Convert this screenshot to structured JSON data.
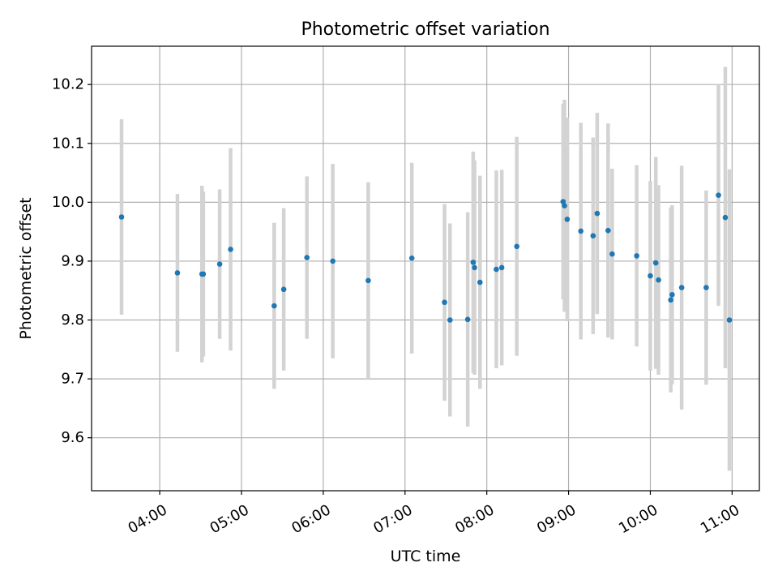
{
  "chart_data": {
    "type": "scatter",
    "title": "Photometric offset variation",
    "xlabel": "UTC time",
    "ylabel": "Photometric offset",
    "grid": true,
    "xlim": [
      "03:10",
      "11:20"
    ],
    "ylim": [
      9.51,
      10.265
    ],
    "x_ticks": [
      "04:00",
      "05:00",
      "06:00",
      "07:00",
      "08:00",
      "09:00",
      "10:00",
      "11:00"
    ],
    "y_ticks": [
      9.6,
      9.7,
      9.8,
      9.9,
      10.0,
      10.1,
      10.2
    ],
    "y_tick_labels": [
      "9.6",
      "9.7",
      "9.8",
      "9.9",
      "10.0",
      "10.1",
      "10.2"
    ],
    "point_color": "#1f77b4",
    "errorbar_color": "#d3d3d3",
    "series": [
      {
        "points": [
          {
            "x": "03:32",
            "y": 9.975,
            "err": 0.166
          },
          {
            "x": "04:13",
            "y": 9.88,
            "err": 0.134
          },
          {
            "x": "04:31",
            "y": 9.878,
            "err": 0.15
          },
          {
            "x": "04:32",
            "y": 9.878,
            "err": 0.14
          },
          {
            "x": "04:44",
            "y": 9.895,
            "err": 0.127
          },
          {
            "x": "04:52",
            "y": 9.92,
            "err": 0.172
          },
          {
            "x": "05:24",
            "y": 9.824,
            "err": 0.141
          },
          {
            "x": "05:31",
            "y": 9.852,
            "err": 0.138
          },
          {
            "x": "05:48",
            "y": 9.906,
            "err": 0.138
          },
          {
            "x": "06:07",
            "y": 9.9,
            "err": 0.165
          },
          {
            "x": "06:33",
            "y": 9.867,
            "err": 0.167
          },
          {
            "x": "07:05",
            "y": 9.905,
            "err": 0.162
          },
          {
            "x": "07:29",
            "y": 9.83,
            "err": 0.167
          },
          {
            "x": "07:33",
            "y": 9.8,
            "err": 0.164
          },
          {
            "x": "07:46",
            "y": 9.801,
            "err": 0.182
          },
          {
            "x": "07:50",
            "y": 9.898,
            "err": 0.188
          },
          {
            "x": "07:51",
            "y": 9.889,
            "err": 0.182
          },
          {
            "x": "07:55",
            "y": 9.864,
            "err": 0.181
          },
          {
            "x": "08:07",
            "y": 9.886,
            "err": 0.168
          },
          {
            "x": "08:11",
            "y": 9.889,
            "err": 0.166
          },
          {
            "x": "08:22",
            "y": 9.925,
            "err": 0.186
          },
          {
            "x": "08:56",
            "y": 10.001,
            "err": 0.166
          },
          {
            "x": "08:57",
            "y": 9.994,
            "err": 0.18
          },
          {
            "x": "08:59",
            "y": 9.971,
            "err": 0.173
          },
          {
            "x": "09:09",
            "y": 9.951,
            "err": 0.184
          },
          {
            "x": "09:18",
            "y": 9.943,
            "err": 0.167
          },
          {
            "x": "09:21",
            "y": 9.981,
            "err": 0.171
          },
          {
            "x": "09:29",
            "y": 9.952,
            "err": 0.182
          },
          {
            "x": "09:32",
            "y": 9.912,
            "err": 0.145
          },
          {
            "x": "09:50",
            "y": 9.909,
            "err": 0.154
          },
          {
            "x": "10:00",
            "y": 9.875,
            "err": 0.161
          },
          {
            "x": "10:04",
            "y": 9.897,
            "err": 0.18
          },
          {
            "x": "10:06",
            "y": 9.868,
            "err": 0.161
          },
          {
            "x": "10:15",
            "y": 9.834,
            "err": 0.157
          },
          {
            "x": "10:16",
            "y": 9.843,
            "err": 0.152
          },
          {
            "x": "10:23",
            "y": 9.855,
            "err": 0.207
          },
          {
            "x": "10:41",
            "y": 9.855,
            "err": 0.165
          },
          {
            "x": "10:50",
            "y": 10.012,
            "err": 0.188
          },
          {
            "x": "10:55",
            "y": 9.974,
            "err": 0.256
          },
          {
            "x": "10:58",
            "y": 9.8,
            "err": 0.256
          }
        ]
      }
    ]
  }
}
